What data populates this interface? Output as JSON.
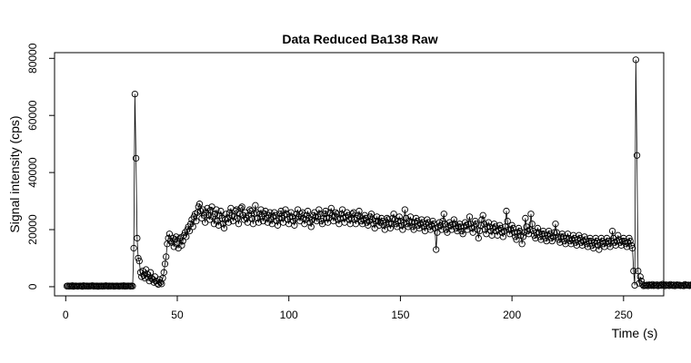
{
  "chart_data": {
    "type": "line",
    "title": "Data Reduced Ba138 Raw",
    "xlabel": "Time (s)",
    "ylabel": "Signal intensity (cps)",
    "xlim": [
      -5,
      268
    ],
    "ylim": [
      -3200,
      82000
    ],
    "x_ticks": [
      0,
      50,
      100,
      150,
      200,
      250
    ],
    "y_ticks": [
      0,
      20000,
      40000,
      60000,
      80000
    ],
    "x_tick_labels": [
      "0",
      "50",
      "100",
      "150",
      "200",
      "250"
    ],
    "y_tick_labels": [
      "0",
      "20000",
      "40000",
      "60000",
      "80000"
    ],
    "marker": "open-circle",
    "line_style": "solid thin",
    "grid": false,
    "legend": "none",
    "series": [
      {
        "x_start": 0.5,
        "x_step": 0.5,
        "values": [
          200,
          300,
          150,
          250,
          200,
          350,
          100,
          250,
          300,
          200,
          150,
          250,
          300,
          200,
          100,
          350,
          250,
          200,
          300,
          150,
          250,
          200,
          300,
          350,
          150,
          250,
          200,
          300,
          100,
          250,
          200,
          300,
          150,
          250,
          200,
          350,
          250,
          150,
          300,
          200,
          250,
          300,
          150,
          200,
          250,
          300,
          200,
          150,
          250,
          300,
          200,
          350,
          150,
          250,
          200,
          300,
          250,
          150,
          300,
          200,
          13500,
          67500,
          45000,
          17000,
          10000,
          9000,
          5000,
          3500,
          5500,
          4000,
          3000,
          6000,
          4500,
          3200,
          2000,
          5000,
          3000,
          2500,
          1500,
          3500,
          2000,
          1200,
          800,
          2500,
          1500,
          1000,
          3000,
          5000,
          8000,
          10500,
          15000,
          17000,
          18500,
          16000,
          15500,
          17000,
          14000,
          16500,
          17500,
          15000,
          13500,
          16800,
          17200,
          14500,
          16000,
          18000,
          19000,
          17500,
          20000,
          21000,
          19500,
          22000,
          23500,
          21000,
          24500,
          25500,
          23000,
          26000,
          28000,
          29000,
          26500,
          24000,
          27000,
          25000,
          22500,
          26000,
          27500,
          25000,
          23500,
          26800,
          28000,
          24500,
          22000,
          25500,
          27000,
          23000,
          21500,
          25000,
          26500,
          24000,
          22000,
          20500,
          23500,
          25500,
          24000,
          22500,
          26000,
          27500,
          25000,
          23000,
          24500,
          26500,
          27000,
          24000,
          22000,
          25500,
          27500,
          28000,
          25000,
          23500,
          26000,
          24000,
          22500,
          25000,
          27000,
          26500,
          24000,
          22000,
          25500,
          28500,
          26000,
          24000,
          22500,
          25500,
          27000,
          24500,
          23000,
          25500,
          26500,
          24000,
          22500,
          25000,
          26000,
          23500,
          22000,
          24500,
          26000,
          25000,
          23000,
          21500,
          24000,
          25500,
          26500,
          24000,
          22500,
          25000,
          27000,
          25500,
          23500,
          22000,
          24500,
          26000,
          24500,
          23000,
          21500,
          24000,
          25500,
          27000,
          24500,
          23000,
          25500,
          26000,
          24000,
          22000,
          23500,
          25000,
          26500,
          24000,
          22500,
          21000,
          23500,
          25000,
          26000,
          24500,
          23000,
          24500,
          27000,
          25500,
          23000,
          22000,
          24000,
          25500,
          26500,
          24000,
          22500,
          24000,
          26000,
          27500,
          25000,
          23000,
          24500,
          26000,
          25500,
          23500,
          22000,
          24000,
          25500,
          27000,
          24000,
          22500,
          24500,
          26000,
          25000,
          23500,
          22000,
          24000,
          25500,
          26000,
          23500,
          22000,
          24000,
          25000,
          26500,
          24500,
          23000,
          22000,
          23500,
          25000,
          24000,
          22500,
          21500,
          23000,
          24500,
          25500,
          23500,
          22000,
          20500,
          23000,
          24500,
          23000,
          21500,
          22500,
          24000,
          23000,
          21500,
          20000,
          22500,
          24000,
          23500,
          22000,
          20500,
          22000,
          24000,
          25500,
          23500,
          22000,
          21000,
          23000,
          24500,
          23000,
          21500,
          20000,
          22500,
          27000,
          24000,
          22000,
          21000,
          23000,
          24500,
          22500,
          21000,
          20000,
          22500,
          24000,
          23000,
          21500,
          20500,
          22000,
          23500,
          22500,
          21000,
          19500,
          22000,
          23500,
          22500,
          21000,
          20000,
          21500,
          23000,
          22000,
          20500,
          13000,
          19000,
          21000,
          22500,
          21500,
          20000,
          23000,
          25500,
          22000,
          20000,
          19000,
          21000,
          22500,
          21500,
          20000,
          22000,
          23500,
          22000,
          20500,
          19500,
          21000,
          22000,
          21000,
          19500,
          18500,
          21000,
          22500,
          21500,
          20000,
          22000,
          24500,
          22000,
          20500,
          19000,
          21000,
          23000,
          22000,
          20000,
          17000,
          19500,
          21500,
          23500,
          25000,
          22000,
          20000,
          18500,
          21000,
          22500,
          21000,
          19500,
          18000,
          20500,
          22000,
          21000,
          19500,
          18000,
          20000,
          21500,
          20500,
          19000,
          17500,
          19500,
          21000,
          26500,
          23000,
          20000,
          18500,
          20000,
          21500,
          20500,
          19000,
          17500,
          16500,
          19000,
          20500,
          19500,
          18000,
          15000,
          17500,
          19000,
          24000,
          21000,
          19500,
          18500,
          20000,
          25500,
          22000,
          19500,
          18000,
          17000,
          19000,
          20500,
          19000,
          17500,
          16500,
          18500,
          19500,
          18500,
          17000,
          16000,
          18000,
          19500,
          18500,
          17000,
          16000,
          17500,
          19000,
          22000,
          19000,
          17500,
          16500,
          15500,
          17500,
          18500,
          17500,
          16000,
          15000,
          17000,
          18500,
          17000,
          16000,
          15000,
          16500,
          18000,
          17000,
          15500,
          14500,
          16500,
          18000,
          17000,
          15500,
          14500,
          16000,
          17500,
          16500,
          15000,
          14000,
          16000,
          17000,
          16000,
          14500,
          13500,
          15500,
          17000,
          16000,
          14500,
          13000,
          15500,
          17000,
          16000,
          15000,
          14000,
          15500,
          17000,
          16000,
          15000,
          14000,
          16000,
          19500,
          17000,
          15500,
          14500,
          16000,
          18000,
          16500,
          15500,
          14500,
          16000,
          17000,
          16000,
          15000,
          14000,
          15500,
          17000,
          16000,
          14500,
          13500,
          5500,
          500,
          79500,
          46000,
          5500,
          1200,
          3500,
          2000,
          800,
          300,
          500,
          400,
          600,
          300,
          700,
          500,
          400,
          800,
          350,
          600,
          450,
          700,
          300,
          500,
          650,
          400,
          900,
          550,
          300,
          700,
          450,
          600,
          350,
          800,
          500,
          400,
          650,
          300,
          550,
          700,
          450,
          600,
          350,
          500,
          400,
          300,
          800,
          550,
          450,
          600,
          350,
          500,
          700,
          400,
          550,
          300,
          650,
          450,
          500,
          350,
          600,
          400
        ]
      }
    ]
  }
}
